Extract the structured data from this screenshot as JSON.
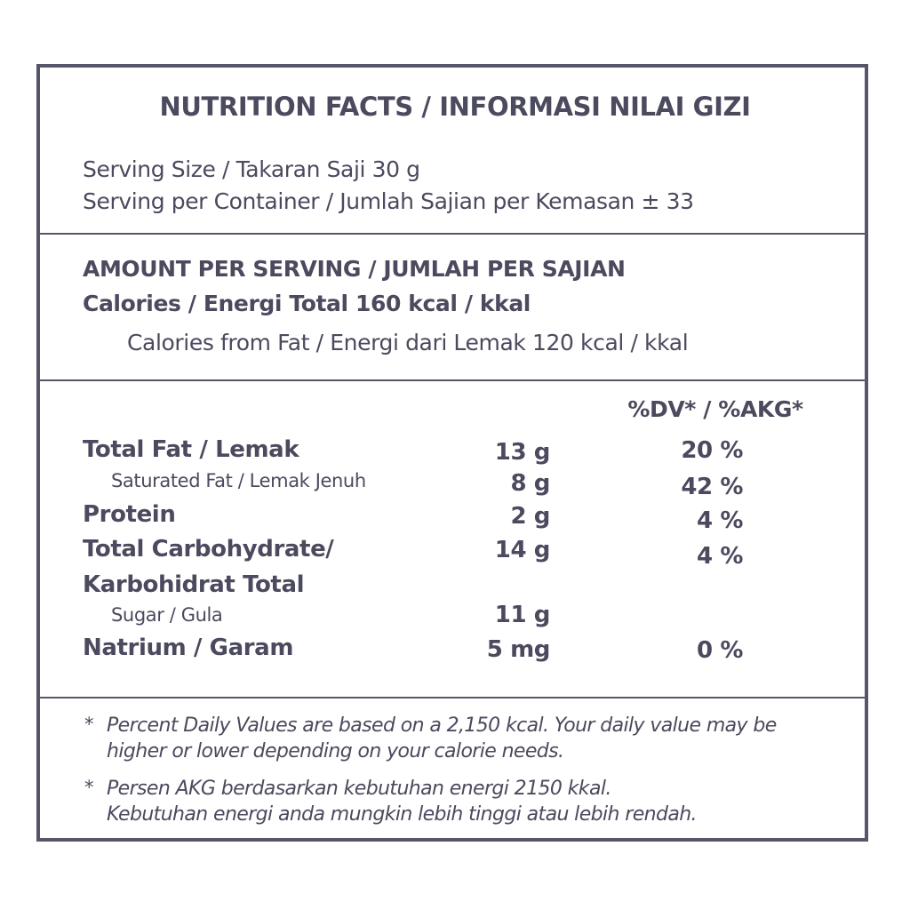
{
  "title": "NUTRITION FACTS / INFORMASI NILAI GIZI",
  "serving": {
    "size": "Serving Size / Takaran Saji 30 g",
    "per_container": "Serving per Container / Jumlah Sajian per Kemasan ± 33"
  },
  "amount": {
    "heading": "AMOUNT PER SERVING / JUMLAH PER SAJIAN",
    "calories": "Calories  / Energi Total 160 kcal / kkal",
    "calories_from_fat": "Calories from Fat / Energi dari Lemak 120 kcal / kkal"
  },
  "dv_header": "%DV* / %AKG*",
  "nutrients": [
    {
      "name": "Total Fat / Lemak",
      "amount": "13 g",
      "dv": "20 %"
    },
    {
      "name": "Saturated Fat / Lemak Jenuh",
      "amount": "8 g",
      "dv": "42 %"
    },
    {
      "name": "Protein",
      "amount": "2 g",
      "dv": "4  %"
    },
    {
      "name": "Total Carbohydrate/",
      "name_line2": "Karbohidrat Total",
      "amount": "14 g",
      "dv": "4  %"
    },
    {
      "name": "Sugar / Gula",
      "amount": "11 g"
    },
    {
      "name": "Natrium / Garam",
      "amount": "5 mg",
      "dv": "0 %"
    }
  ],
  "footnotes": {
    "en_marker": "*",
    "en_line1": "Percent Daily Values are based on a 2,150 kcal. Your daily value may be",
    "en_line2": "higher or lower depending on your calorie needs.",
    "id_marker": "*",
    "id_line1": "Persen AKG berdasarkan kebutuhan energi 2150 kkal.",
    "id_line2": "Kebutuhan energi anda mungkin lebih tinggi atau lebih rendah."
  },
  "colors": {
    "text": "#4b4a5e",
    "border": "#56566a",
    "background": "#ffffff"
  }
}
